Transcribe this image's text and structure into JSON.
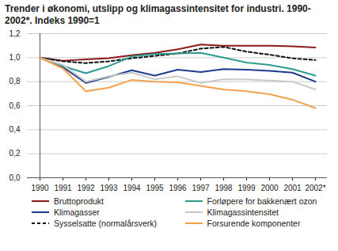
{
  "chart_data": {
    "type": "line",
    "title": "Trender i økonomi, utslipp og klimagassintensitet for industri. 1990-2002*. Indeks 1990=1",
    "categories": [
      "1990",
      "1991",
      "1992",
      "1993",
      "1994",
      "1995",
      "1996",
      "1997",
      "1998",
      "1999",
      "2000",
      "2001",
      "2002*"
    ],
    "ylim": [
      0,
      1.2
    ],
    "yticks": [
      {
        "value": 0,
        "label": "0,0"
      },
      {
        "value": 0.2,
        "label": "0,2"
      },
      {
        "value": 0.4,
        "label": "0,4"
      },
      {
        "value": 0.6,
        "label": "0,6"
      },
      {
        "value": 0.8,
        "label": "0,8"
      },
      {
        "value": 1.0,
        "label": "1,0"
      },
      {
        "value": 1.2,
        "label": "1,2"
      }
    ],
    "grid": true,
    "legend": "bottom",
    "series": [
      {
        "name": "Bruttoprodukt",
        "color": "#8b1a1a",
        "values": [
          1.0,
          0.975,
          0.985,
          0.995,
          1.02,
          1.04,
          1.07,
          1.11,
          1.1,
          1.1,
          1.1,
          1.095,
          1.085
        ]
      },
      {
        "name": "Klimagasser",
        "color": "#1f3a8f",
        "values": [
          1.0,
          0.92,
          0.79,
          0.84,
          0.895,
          0.85,
          0.9,
          0.88,
          0.905,
          0.9,
          0.89,
          0.875,
          0.8
        ]
      },
      {
        "name": "Sysselsatte (normalårsverk)",
        "color": "#111111",
        "line_style": "dashed",
        "values": [
          1.0,
          0.97,
          0.955,
          0.97,
          0.995,
          1.015,
          1.035,
          1.075,
          1.09,
          1.05,
          1.025,
          0.995,
          0.98
        ]
      },
      {
        "name": "Forløpere for bakkenært ozon",
        "color": "#2a9d8f",
        "values": [
          1.0,
          0.93,
          0.87,
          0.93,
          1.01,
          1.03,
          1.035,
          1.04,
          1.0,
          0.96,
          0.94,
          0.905,
          0.85
        ]
      },
      {
        "name": "Klimagassintensitet",
        "color": "#c8c8c8",
        "values": [
          1.0,
          0.94,
          0.8,
          0.845,
          0.875,
          0.82,
          0.845,
          0.79,
          0.82,
          0.82,
          0.81,
          0.8,
          0.735
        ]
      },
      {
        "name": "Forsurende komponenter",
        "color": "#f5a04a",
        "values": [
          1.0,
          0.91,
          0.72,
          0.75,
          0.815,
          0.8,
          0.795,
          0.765,
          0.735,
          0.72,
          0.695,
          0.65,
          0.58
        ]
      }
    ]
  }
}
